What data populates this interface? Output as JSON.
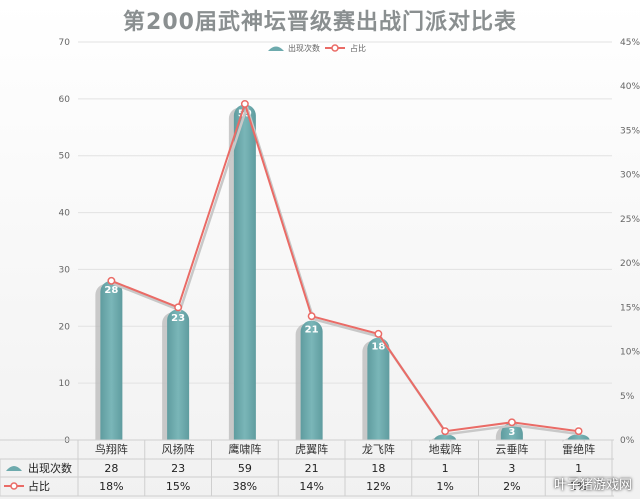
{
  "chart_data": {
    "type": "bar",
    "title": "第200届武神坛晋级赛出战门派对比表",
    "categories": [
      "鸟翔阵",
      "风扬阵",
      "鹰啸阵",
      "虎翼阵",
      "龙飞阵",
      "地载阵",
      "云垂阵",
      "雷绝阵"
    ],
    "series": [
      {
        "name": "出现次数",
        "kind": "bar",
        "axis": "left",
        "color": "#6daaad",
        "values": [
          28,
          23,
          59,
          21,
          18,
          1,
          3,
          1
        ]
      },
      {
        "name": "占比",
        "kind": "line",
        "axis": "right",
        "color": "#ea6b66",
        "values": [
          18,
          15,
          38,
          14,
          12,
          1,
          2,
          1
        ],
        "labels": [
          "18%",
          "15%",
          "38%",
          "14%",
          "12%",
          "1%",
          "2%",
          "1%"
        ]
      }
    ],
    "left_axis": {
      "min": 0,
      "max": 70,
      "ticks": [
        0,
        10,
        20,
        30,
        40,
        50,
        60,
        70
      ]
    },
    "right_axis": {
      "min": 0,
      "max": 45,
      "ticks": [
        0,
        5,
        10,
        15,
        20,
        25,
        30,
        35,
        40,
        45
      ],
      "tick_labels": [
        "0%",
        "5%",
        "10%",
        "15%",
        "20%",
        "25%",
        "30%",
        "35%",
        "40%",
        "45%"
      ]
    },
    "legend_position": "top-center",
    "grid": true,
    "data_table": true
  },
  "watermark": "叶子猪游戏网"
}
